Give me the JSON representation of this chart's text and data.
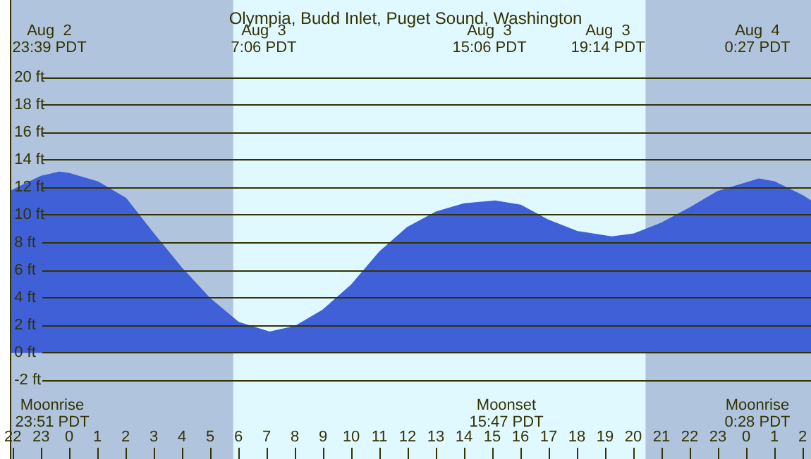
{
  "chart_data": {
    "type": "area",
    "title": "Olympia, Budd Inlet, Puget Sound, Washington",
    "x": [
      "--08-02T21:54",
      "--08-02T23:00",
      "--08-02T23:39",
      "--08-03T00:00",
      "--08-03T01:00",
      "--08-03T02:00",
      "--08-03T03:00",
      "--08-03T04:00",
      "--08-03T05:00",
      "--08-03T06:00",
      "--08-03T07:06",
      "--08-03T08:00",
      "--08-03T09:00",
      "--08-03T10:00",
      "--08-03T11:00",
      "--08-03T12:00",
      "--08-03T13:00",
      "--08-03T14:00",
      "--08-03T15:06",
      "--08-03T16:00",
      "--08-03T17:00",
      "--08-03T18:00",
      "--08-03T19:14",
      "--08-03T20:00",
      "--08-03T21:00",
      "--08-03T22:00",
      "--08-03T23:00",
      "--08-04T00:27",
      "--08-04T01:00",
      "--08-04T02:00",
      "--08-04T02:18"
    ],
    "series": [
      {
        "color": "#4060d8",
        "values": [
          11.7,
          12.8,
          13.1,
          13.0,
          12.4,
          11.2,
          8.6,
          6.1,
          3.9,
          2.2,
          1.5,
          1.9,
          3.1,
          4.9,
          7.3,
          9.1,
          10.2,
          10.8,
          11.0,
          10.7,
          9.6,
          8.8,
          8.4,
          8.6,
          9.4,
          10.5,
          11.7,
          12.6,
          12.4,
          11.4,
          11.0
        ]
      }
    ],
    "xlim": [
      "--08-02T21:54",
      "--08-04T02:18"
    ],
    "xticks": [
      {
        "value": "--08-02T22:00",
        "label": "22"
      },
      {
        "value": "--08-02T23:00",
        "label": "23"
      },
      {
        "value": "--08-03T00:00",
        "label": "0"
      },
      {
        "value": "--08-03T01:00",
        "label": "1"
      },
      {
        "value": "--08-03T02:00",
        "label": "2"
      },
      {
        "value": "--08-03T03:00",
        "label": "3"
      },
      {
        "value": "--08-03T04:00",
        "label": "4"
      },
      {
        "value": "--08-03T05:00",
        "label": "5"
      },
      {
        "value": "--08-03T06:00",
        "label": "6"
      },
      {
        "value": "--08-03T07:00",
        "label": "7"
      },
      {
        "value": "--08-03T08:00",
        "label": "8"
      },
      {
        "value": "--08-03T09:00",
        "label": "9"
      },
      {
        "value": "--08-03T10:00",
        "label": "10"
      },
      {
        "value": "--08-03T11:00",
        "label": "11"
      },
      {
        "value": "--08-03T12:00",
        "label": "12"
      },
      {
        "value": "--08-03T13:00",
        "label": "13"
      },
      {
        "value": "--08-03T14:00",
        "label": "14"
      },
      {
        "value": "--08-03T15:00",
        "label": "15"
      },
      {
        "value": "--08-03T16:00",
        "label": "16"
      },
      {
        "value": "--08-03T17:00",
        "label": "17"
      },
      {
        "value": "--08-03T18:00",
        "label": "18"
      },
      {
        "value": "--08-03T19:00",
        "label": "19"
      },
      {
        "value": "--08-03T20:00",
        "label": "20"
      },
      {
        "value": "--08-03T21:00",
        "label": "21"
      },
      {
        "value": "--08-03T22:00",
        "label": "22"
      },
      {
        "value": "--08-03T23:00",
        "label": "23"
      },
      {
        "value": "--08-04T00:00",
        "label": "0"
      },
      {
        "value": "--08-04T01:00",
        "label": "1"
      },
      {
        "value": "--08-04T02:00",
        "label": "2"
      }
    ],
    "ylim": [
      -7.7,
      25.6
    ],
    "yticks": [
      {
        "value": -2,
        "label": "-2 ft"
      },
      {
        "value": 0,
        "label": "0 ft"
      },
      {
        "value": 2,
        "label": "2 ft"
      },
      {
        "value": 4,
        "label": "4 ft"
      },
      {
        "value": 6,
        "label": "6 ft"
      },
      {
        "value": 8,
        "label": "8 ft"
      },
      {
        "value": 10,
        "label": "10 ft"
      },
      {
        "value": 12,
        "label": "12 ft"
      },
      {
        "value": 14,
        "label": "14 ft"
      },
      {
        "value": 16,
        "label": "16 ft"
      },
      {
        "value": 18,
        "label": "18 ft"
      },
      {
        "value": 20,
        "label": "20 ft"
      }
    ],
    "grid": "y",
    "bands": [
      {
        "axis": "x",
        "from": "--08-02T21:54",
        "to": "--08-03T05:49",
        "color": "#b0c4de"
      },
      {
        "axis": "x",
        "from": "--08-03T05:49",
        "to": "--08-03T20:26",
        "color": "#e0f8ff"
      },
      {
        "axis": "x",
        "from": "--08-03T20:26",
        "to": "--08-04T02:18",
        "color": "#b0c4de"
      }
    ],
    "annotations": [
      "Aug  2\n23:39 PDT",
      "Aug  3\n7:06 PDT",
      "Aug  3\n15:06 PDT",
      "Aug  3\n19:14 PDT",
      "Aug  4\n0:27 PDT",
      "Moonrise\n23:51 PDT",
      "Moonset\n15:47 PDT",
      "Moonrise\n0:28 PDT"
    ]
  }
}
